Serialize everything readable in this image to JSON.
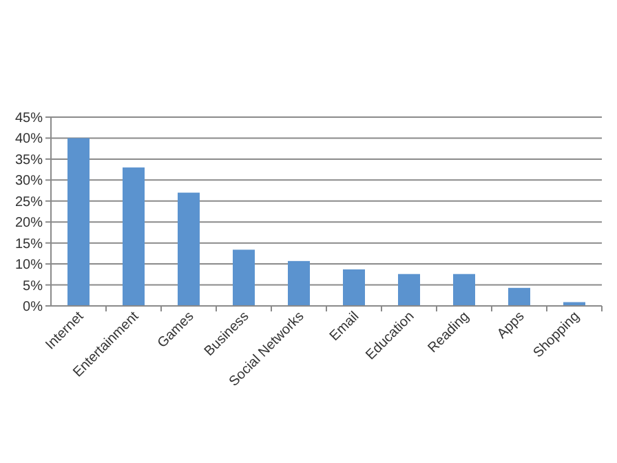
{
  "chart_data": {
    "type": "bar",
    "categories": [
      "Internet",
      "Entertainment",
      "Games",
      "Business",
      "Social Networks",
      "Email",
      "Education",
      "Reading",
      "Apps",
      "Shopping"
    ],
    "values": [
      40,
      33,
      27,
      13.4,
      10.7,
      8.7,
      7.6,
      7.6,
      4.3,
      0.9
    ],
    "color": "#5b93cf",
    "ylim": [
      0,
      45
    ],
    "yticks": [
      {
        "value": 0,
        "label": "0%"
      },
      {
        "value": 5,
        "label": "5%"
      },
      {
        "value": 10,
        "label": "10%"
      },
      {
        "value": 15,
        "label": "15%"
      },
      {
        "value": 20,
        "label": "20%"
      },
      {
        "value": 25,
        "label": "25%"
      },
      {
        "value": 30,
        "label": "30%"
      },
      {
        "value": 35,
        "label": "35%"
      },
      {
        "value": 40,
        "label": "40%"
      },
      {
        "value": 45,
        "label": "45%"
      }
    ],
    "grid": "y"
  }
}
